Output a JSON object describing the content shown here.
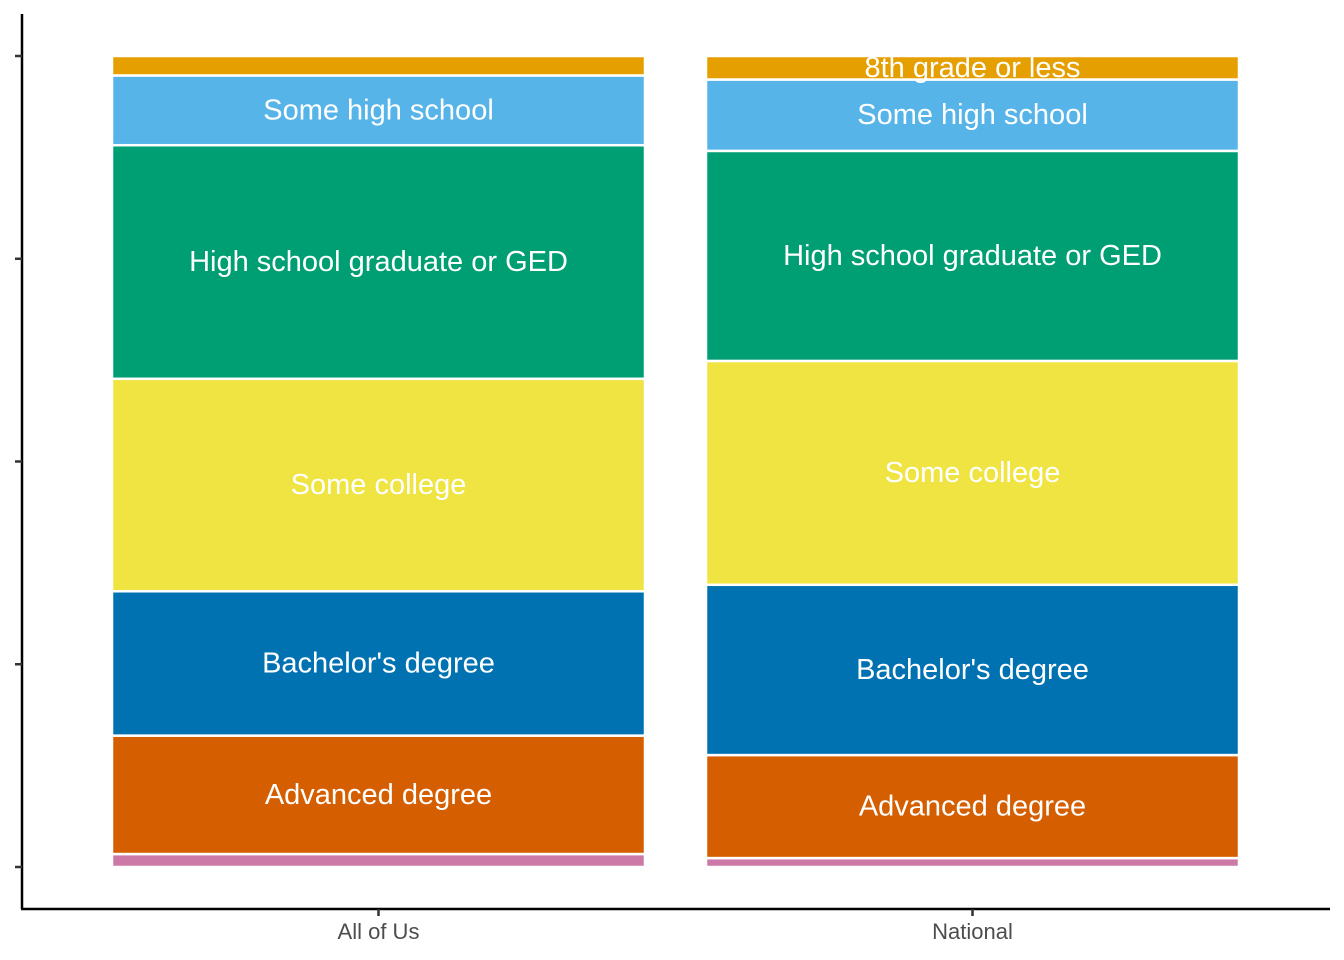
{
  "chart_data": {
    "type": "bar",
    "stacked": true,
    "orientation": "vertical",
    "categories": [
      "All of Us",
      "National"
    ],
    "ylim": [
      0,
      1
    ],
    "y_tick_labels": false,
    "grid": false,
    "legend": "none",
    "series": [
      {
        "label": "",
        "color": "#CC79A7",
        "values": [
          0.016,
          0.011
        ]
      },
      {
        "label": "Advanced degree",
        "color": "#D55E00",
        "values": [
          0.146,
          0.127
        ]
      },
      {
        "label": "Bachelor's degree",
        "color": "#0072B2",
        "values": [
          0.178,
          0.21
        ]
      },
      {
        "label": "Some college",
        "color": "#F0E442",
        "values": [
          0.262,
          0.276
        ]
      },
      {
        "label": "High school graduate or GED",
        "color": "#009E73",
        "values": [
          0.288,
          0.259
        ]
      },
      {
        "label": "Some high school",
        "color": "#56B4E9",
        "values": [
          0.086,
          0.088
        ]
      },
      {
        "label": "8th grade or less",
        "color": "#E69F00",
        "values": [
          0.024,
          0.029
        ],
        "shown": [
          false,
          true
        ]
      }
    ]
  }
}
